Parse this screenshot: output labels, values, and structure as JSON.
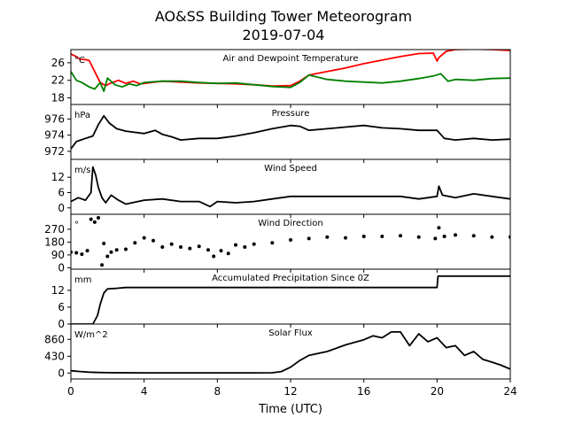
{
  "title": "AO&SS Building Tower Meteorogram",
  "subtitle": "2019-07-04",
  "xlabel": "Time (UTC)",
  "x_ticks": [
    0,
    4,
    8,
    12,
    16,
    20,
    24
  ],
  "xlim": [
    0,
    24
  ],
  "chart_data": [
    {
      "type": "line",
      "title": "Air and Dewpoint Temperature",
      "unit": "°C",
      "ylim": [
        16.5,
        29
      ],
      "y_ticks": [
        18,
        22,
        26
      ],
      "series": [
        {
          "color": "#ff0000",
          "x": [
            0,
            0.2,
            0.5,
            0.8,
            1.0,
            1.3,
            1.6,
            1.9,
            2.2,
            2.6,
            3.0,
            3.4,
            3.8,
            4.2,
            5,
            6,
            7,
            8,
            9,
            10,
            11,
            12,
            12.5,
            13,
            14,
            15,
            16,
            17,
            18,
            19,
            19.8,
            20.0,
            20.1,
            20.5,
            21,
            22,
            23,
            24
          ],
          "y": [
            28,
            27.6,
            26.8,
            26.7,
            26.5,
            24,
            21.5,
            20.8,
            21.4,
            22,
            21.3,
            21.8,
            21.2,
            21.4,
            21.8,
            21.6,
            21.4,
            21.3,
            21.2,
            21.0,
            20.7,
            20.8,
            21.8,
            23.2,
            24.0,
            24.8,
            25.8,
            26.6,
            27.4,
            28.1,
            28.2,
            26.4,
            27.2,
            28.6,
            29.0,
            29.1,
            29.0,
            28.8
          ]
        },
        {
          "color": "#008000",
          "x": [
            0,
            0.3,
            0.6,
            1.0,
            1.3,
            1.6,
            1.8,
            2.0,
            2.4,
            2.8,
            3.2,
            3.6,
            4,
            5,
            6,
            7,
            8,
            9,
            10,
            11,
            12,
            12.5,
            13,
            14,
            15,
            16,
            17,
            18,
            19,
            19.8,
            20.2,
            20.6,
            21,
            22,
            23,
            24
          ],
          "y": [
            24,
            22,
            21.5,
            20.5,
            20,
            21.5,
            19.5,
            22.5,
            21,
            20.5,
            21.2,
            20.8,
            21.5,
            21.8,
            21.8,
            21.5,
            21.3,
            21.4,
            21.0,
            20.6,
            20.4,
            21.5,
            23.2,
            22.2,
            21.8,
            21.6,
            21.4,
            21.8,
            22.4,
            23.0,
            23.5,
            21.8,
            22.2,
            22.0,
            22.4,
            22.5
          ]
        }
      ]
    },
    {
      "type": "line",
      "title": "Pressure",
      "unit": "hPa",
      "ylim": [
        971,
        977.8
      ],
      "y_ticks": [
        972,
        974,
        976
      ],
      "series": [
        {
          "color": "#000000",
          "x": [
            0,
            0.3,
            0.8,
            1.2,
            1.5,
            1.8,
            2.1,
            2.5,
            3,
            4,
            4.6,
            5,
            5.5,
            6,
            7,
            8,
            9,
            10,
            11,
            12,
            12.5,
            13,
            14,
            15,
            16,
            17,
            18,
            19,
            20,
            20.4,
            21,
            22,
            23,
            24
          ],
          "y": [
            972.3,
            973.2,
            973.6,
            973.9,
            975.3,
            976.4,
            975.5,
            974.8,
            974.5,
            974.2,
            974.6,
            974.1,
            973.8,
            973.4,
            973.6,
            973.6,
            973.9,
            974.3,
            974.8,
            975.2,
            975.1,
            974.6,
            974.8,
            975.0,
            975.2,
            974.9,
            974.8,
            974.6,
            974.6,
            973.6,
            973.4,
            973.6,
            973.4,
            973.5
          ]
        }
      ]
    },
    {
      "type": "line",
      "title": "Wind Speed",
      "unit": "m/s",
      "ylim": [
        -2.5,
        19
      ],
      "y_ticks": [
        0,
        6,
        12
      ],
      "series": [
        {
          "color": "#000000",
          "x": [
            0,
            0.4,
            0.8,
            1.1,
            1.2,
            1.35,
            1.5,
            1.7,
            1.9,
            2.2,
            2.6,
            3.0,
            4,
            5,
            6,
            7,
            7.6,
            8,
            9,
            10,
            11,
            12,
            13,
            14,
            15,
            16,
            17,
            18,
            19,
            20,
            20.1,
            20.3,
            21,
            22,
            23,
            24
          ],
          "y": [
            2.5,
            4,
            3,
            6,
            16,
            13,
            8,
            4,
            2,
            5,
            3,
            1.5,
            3,
            3.5,
            2.5,
            2.5,
            0.5,
            2.5,
            2,
            2.5,
            3.5,
            4.5,
            4.5,
            4.5,
            4.5,
            4.5,
            4.5,
            4.5,
            3.5,
            4.5,
            8.5,
            5,
            4,
            5.5,
            4.5,
            3.5
          ]
        }
      ]
    },
    {
      "type": "scatter",
      "title": "Wind Direction",
      "unit": "°",
      "ylim": [
        -10,
        375
      ],
      "y_ticks": [
        0,
        90,
        180,
        270
      ],
      "series": [
        {
          "color": "#000000",
          "x": [
            0,
            0.3,
            0.6,
            0.9,
            1.1,
            1.3,
            1.5,
            1.7,
            1.8,
            2.0,
            2.2,
            2.5,
            3.0,
            3.5,
            4.0,
            4.5,
            5.0,
            5.5,
            6,
            6.5,
            7,
            7.5,
            7.8,
            8.2,
            8.6,
            9,
            9.5,
            10,
            11,
            12,
            13,
            14,
            15,
            16,
            17,
            18,
            19,
            19.9,
            20.1,
            20.4,
            21,
            22,
            23,
            24
          ],
          "y": [
            110,
            105,
            95,
            120,
            340,
            320,
            350,
            20,
            170,
            80,
            110,
            125,
            130,
            175,
            210,
            190,
            145,
            165,
            145,
            135,
            150,
            125,
            80,
            120,
            100,
            160,
            145,
            165,
            175,
            195,
            205,
            215,
            210,
            220,
            220,
            225,
            215,
            205,
            280,
            220,
            230,
            225,
            215,
            215
          ]
        }
      ]
    },
    {
      "type": "line",
      "title": "Accumulated Precipitation Since 0Z",
      "unit": "mm",
      "ylim": [
        0,
        19.5
      ],
      "y_ticks": [
        0,
        6,
        12
      ],
      "series": [
        {
          "color": "#000000",
          "x": [
            0,
            1.2,
            1.45,
            1.6,
            1.8,
            2.0,
            2.5,
            3,
            12,
            20,
            20.05,
            24
          ],
          "y": [
            0,
            0,
            3,
            7,
            11,
            12.5,
            12.7,
            13,
            13,
            13,
            17,
            17
          ]
        }
      ]
    },
    {
      "type": "line",
      "title": "Solar Flux",
      "unit": "W/m^2",
      "ylim": [
        -150,
        1250
      ],
      "y_ticks": [
        0,
        430,
        860
      ],
      "series": [
        {
          "color": "#000000",
          "x": [
            0,
            0.5,
            1,
            1.5,
            2,
            4,
            6,
            8,
            10,
            11,
            11.5,
            12,
            12.5,
            13,
            14,
            15,
            16,
            16.5,
            17,
            17.5,
            18,
            18.5,
            19,
            19.5,
            20,
            20.5,
            21,
            21.5,
            22,
            22.5,
            23,
            23.5,
            24
          ],
          "y": [
            60,
            40,
            25,
            15,
            10,
            5,
            5,
            5,
            5,
            8,
            40,
            150,
            320,
            450,
            550,
            720,
            850,
            950,
            900,
            1050,
            1050,
            700,
            1000,
            800,
            900,
            650,
            700,
            450,
            550,
            350,
            280,
            200,
            100
          ]
        }
      ]
    }
  ]
}
